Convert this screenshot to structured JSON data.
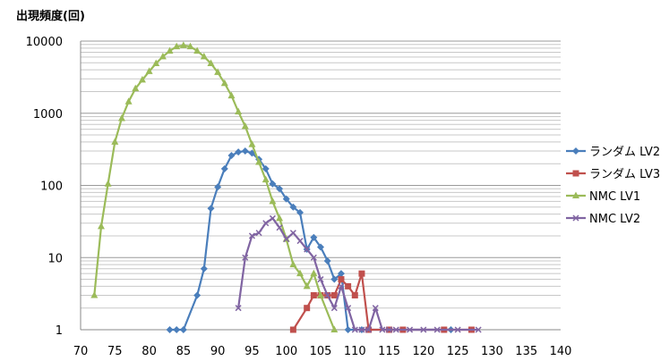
{
  "chart_data": {
    "type": "line",
    "ylabel": "出現頻度(回)",
    "xlabel": "",
    "y_scale": "log",
    "ylim": [
      1,
      10000
    ],
    "xlim": [
      70,
      140
    ],
    "grid": true,
    "legend_position": "right",
    "x_ticks": [
      "70",
      "75",
      "80",
      "85",
      "90",
      "95",
      "100",
      "105",
      "110",
      "115",
      "120",
      "125",
      "130",
      "135",
      "140"
    ],
    "y_ticks": [
      "1",
      "10",
      "100",
      "1000",
      "10000"
    ],
    "series": [
      {
        "name": "ランダム LV2",
        "color": "#4a7ebb",
        "marker": "diamond",
        "points": [
          [
            83,
            1
          ],
          [
            84,
            1
          ],
          [
            85,
            1
          ],
          [
            87,
            3
          ],
          [
            88,
            7
          ],
          [
            89,
            48
          ],
          [
            90,
            95
          ],
          [
            91,
            170
          ],
          [
            92,
            260
          ],
          [
            93,
            290
          ],
          [
            94,
            300
          ],
          [
            95,
            280
          ],
          [
            96,
            230
          ],
          [
            97,
            170
          ],
          [
            98,
            105
          ],
          [
            99,
            90
          ],
          [
            100,
            65
          ],
          [
            101,
            50
          ],
          [
            102,
            42
          ],
          [
            103,
            13
          ],
          [
            104,
            19
          ],
          [
            105,
            14
          ],
          [
            106,
            9
          ],
          [
            107,
            5
          ],
          [
            108,
            6
          ],
          [
            109,
            1
          ],
          [
            111,
            1
          ],
          [
            124,
            1
          ]
        ]
      },
      {
        "name": "ランダム LV3",
        "color": "#c0504d",
        "marker": "square",
        "points": [
          [
            101,
            1
          ],
          [
            103,
            2
          ],
          [
            104,
            3
          ],
          [
            105,
            3
          ],
          [
            106,
            3
          ],
          [
            107,
            3
          ],
          [
            108,
            5
          ],
          [
            109,
            4
          ],
          [
            110,
            3
          ],
          [
            111,
            6
          ],
          [
            112,
            1
          ],
          [
            115,
            1
          ],
          [
            117,
            1
          ],
          [
            123,
            1
          ],
          [
            127,
            1
          ]
        ]
      },
      {
        "name": "NMC LV1",
        "color": "#9bbb59",
        "marker": "triangle",
        "points": [
          [
            72,
            3
          ],
          [
            73,
            27
          ],
          [
            74,
            105
          ],
          [
            75,
            400
          ],
          [
            76,
            850
          ],
          [
            77,
            1450
          ],
          [
            78,
            2200
          ],
          [
            79,
            2900
          ],
          [
            80,
            3800
          ],
          [
            81,
            4900
          ],
          [
            82,
            6100
          ],
          [
            83,
            7300
          ],
          [
            84,
            8400
          ],
          [
            85,
            8700
          ],
          [
            86,
            8400
          ],
          [
            87,
            7300
          ],
          [
            88,
            6100
          ],
          [
            89,
            4900
          ],
          [
            90,
            3700
          ],
          [
            91,
            2600
          ],
          [
            92,
            1750
          ],
          [
            93,
            1050
          ],
          [
            94,
            660
          ],
          [
            95,
            370
          ],
          [
            96,
            210
          ],
          [
            97,
            120
          ],
          [
            98,
            60
          ],
          [
            99,
            35
          ],
          [
            100,
            18
          ],
          [
            101,
            8
          ],
          [
            102,
            6
          ],
          [
            103,
            4
          ],
          [
            104,
            6
          ],
          [
            105,
            3
          ],
          [
            107,
            1
          ]
        ]
      },
      {
        "name": "NMC LV2",
        "color": "#8064a2",
        "marker": "cross",
        "points": [
          [
            93,
            2
          ],
          [
            94,
            10
          ],
          [
            95,
            20
          ],
          [
            96,
            22
          ],
          [
            97,
            30
          ],
          [
            98,
            35
          ],
          [
            99,
            26
          ],
          [
            100,
            18
          ],
          [
            101,
            22
          ],
          [
            102,
            17
          ],
          [
            103,
            13
          ],
          [
            104,
            10
          ],
          [
            105,
            5
          ],
          [
            106,
            3
          ],
          [
            107,
            2
          ],
          [
            108,
            4
          ],
          [
            109,
            2
          ],
          [
            110,
            1
          ],
          [
            111,
            1
          ],
          [
            112,
            1
          ],
          [
            113,
            2
          ],
          [
            114,
            1
          ],
          [
            115,
            1
          ],
          [
            116,
            1
          ],
          [
            118,
            1
          ],
          [
            120,
            1
          ],
          [
            122,
            1
          ],
          [
            125,
            1
          ],
          [
            128,
            1
          ]
        ]
      }
    ]
  }
}
